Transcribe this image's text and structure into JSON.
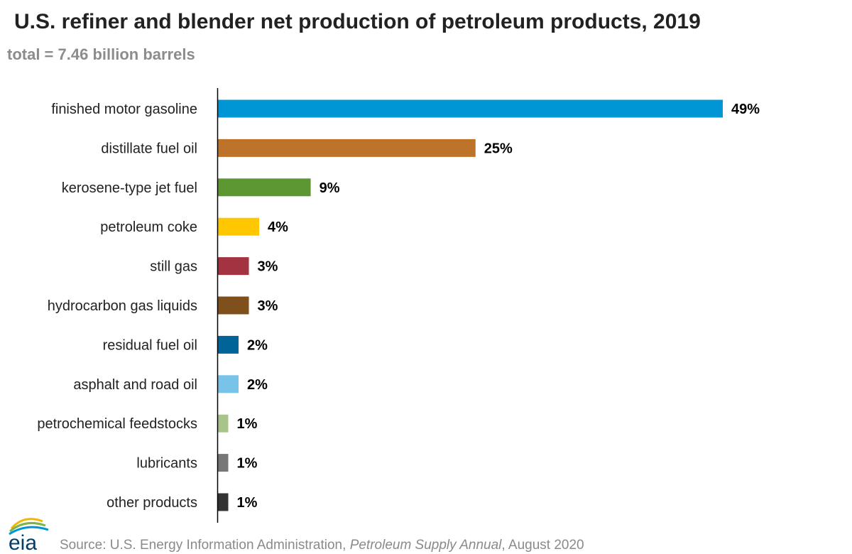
{
  "header": {
    "title": "U.S. refiner and blender net production of petroleum products, 2019",
    "subtitle": "total = 7.46 billion barrels"
  },
  "footer": {
    "source_prefix": "Source: U.S. Energy Information Administration, ",
    "source_publication": "Petroleum Supply Annual",
    "source_suffix": ", August 2020",
    "logo_text": "eia"
  },
  "chart_data": {
    "type": "bar",
    "orientation": "horizontal",
    "title": "U.S. refiner and blender net production of petroleum products, 2019",
    "subtitle": "total = 7.46 billion barrels",
    "xlabel": "",
    "ylabel": "",
    "xlim": [
      0,
      49
    ],
    "grid": false,
    "legend": "none",
    "categories": [
      "finished motor gasoline",
      "distillate fuel oil",
      "kerosene-type jet fuel",
      "petroleum coke",
      "still gas",
      "hydrocarbon gas liquids",
      "residual fuel oil",
      "asphalt and road oil",
      "petrochemical feedstocks",
      "lubricants",
      "other products"
    ],
    "values": [
      49,
      25,
      9,
      4,
      3,
      3,
      2,
      2,
      1,
      1,
      1
    ],
    "value_labels": [
      "49%",
      "25%",
      "9%",
      "4%",
      "3%",
      "3%",
      "2%",
      "2%",
      "1%",
      "1%",
      "1%"
    ],
    "colors": [
      "#0096d6",
      "#bd732a",
      "#5d9732",
      "#ffc700",
      "#a33340",
      "#7f4f1c",
      "#006499",
      "#77c4e8",
      "#a9c48a",
      "#777777",
      "#333333"
    ]
  }
}
